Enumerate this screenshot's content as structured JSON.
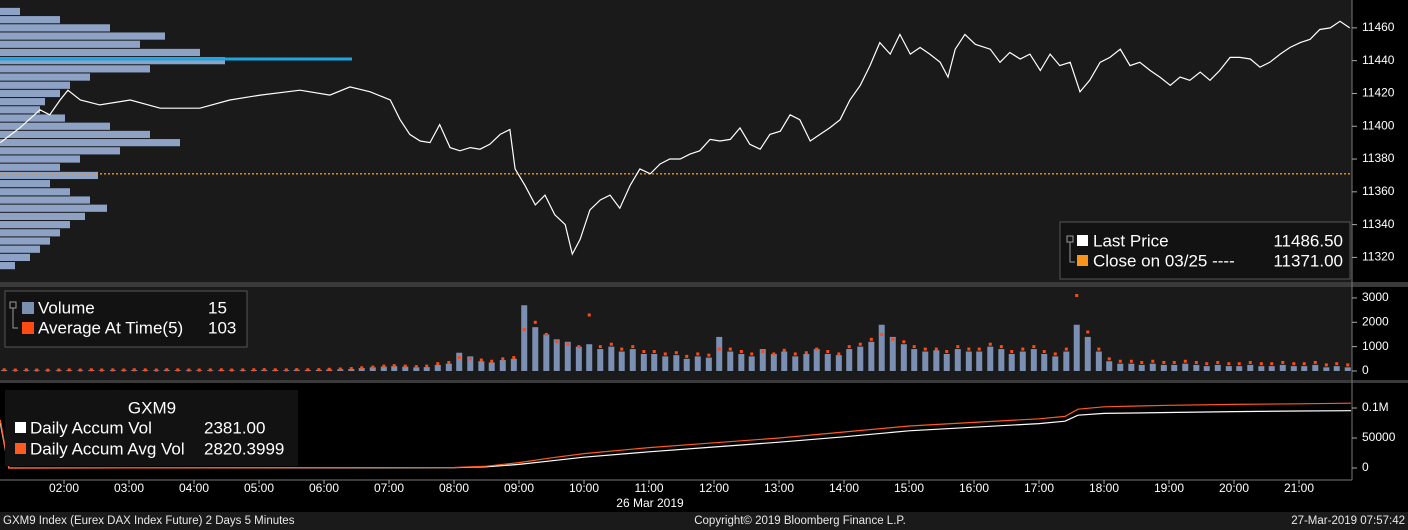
{
  "chart_data": [
    {
      "type": "line",
      "xlim": [
        1.015,
        21.815
      ],
      "ylim": [
        11305,
        11477
      ],
      "yticks": [
        11320,
        11340,
        11360,
        11380,
        11400,
        11420,
        11440,
        11460
      ],
      "series": [
        {
          "name": "Last Price",
          "color": "#ffffff",
          "legend_value": "11486.50",
          "x": [
            1.02,
            1.32,
            1.63,
            1.78,
            1.94,
            2.06,
            2.25,
            2.55,
            3.02,
            3.48,
            4.09,
            4.55,
            5.02,
            5.63,
            6.09,
            6.4,
            6.71,
            7.02,
            7.17,
            7.32,
            7.48,
            7.63,
            7.78,
            7.94,
            8.09,
            8.25,
            8.4,
            8.55,
            8.71,
            8.86,
            8.94,
            9.09,
            9.25,
            9.4,
            9.55,
            9.71,
            9.82,
            9.94,
            10.09,
            10.25,
            10.4,
            10.55,
            10.71,
            10.86,
            11.02,
            11.17,
            11.32,
            11.48,
            11.63,
            11.78,
            11.94,
            12.09,
            12.25,
            12.4,
            12.55,
            12.71,
            12.86,
            13.02,
            13.17,
            13.32,
            13.48,
            13.63,
            13.78,
            13.94,
            14.09,
            14.25,
            14.4,
            14.55,
            14.71,
            14.86,
            15.02,
            15.17,
            15.32,
            15.48,
            15.6,
            15.71,
            15.86,
            16.02,
            16.25,
            16.4,
            16.55,
            16.71,
            16.86,
            17.02,
            17.17,
            17.32,
            17.48,
            17.63,
            17.78,
            17.94,
            18.09,
            18.25,
            18.4,
            18.55,
            18.71,
            18.86,
            19.02,
            19.17,
            19.32,
            19.48,
            19.63,
            19.78,
            19.94,
            20.09,
            20.25,
            20.4,
            20.55,
            20.71,
            20.86,
            21.02,
            21.17,
            21.32,
            21.48,
            21.63,
            21.78
          ],
          "values": [
            11390,
            11399,
            11410,
            11407,
            11416,
            11422,
            11416,
            11413,
            11416,
            11411,
            11411,
            11416,
            11419,
            11422,
            11419,
            11424,
            11421,
            11416,
            11404,
            11395,
            11391,
            11390,
            11401,
            11387,
            11385,
            11387,
            11386,
            11389,
            11395,
            11398,
            11374,
            11364,
            11352,
            11358,
            11346,
            11340,
            11322,
            11331,
            11349,
            11355,
            11358,
            11350,
            11364,
            11374,
            11371,
            11377,
            11380,
            11380,
            11383,
            11385,
            11392,
            11391,
            11392,
            11399,
            11389,
            11386,
            11395,
            11397,
            11407,
            11404,
            11391,
            11395,
            11399,
            11404,
            11416,
            11425,
            11437,
            11451,
            11444,
            11456,
            11444,
            11448,
            11444,
            11439,
            11430,
            11447,
            11456,
            11450,
            11447,
            11439,
            11445,
            11441,
            11444,
            11434,
            11444,
            11437,
            11439,
            11421,
            11428,
            11439,
            11442,
            11447,
            11437,
            11439,
            11434,
            11430,
            11425,
            11430,
            11428,
            11433,
            11428,
            11434,
            11442,
            11442,
            11441,
            11436,
            11439,
            11444,
            11448,
            11451,
            11453,
            11459,
            11460,
            11464,
            11460
          ]
        }
      ],
      "close": {
        "name": "Close on 03/25 ----",
        "value": 11371,
        "legend_value": "11371.00",
        "color": "#f7941d"
      },
      "volume_profile": {
        "color": "#8ea2c6",
        "poc": 11441,
        "poc_color": "#1aa6e0",
        "levels": [
          11470,
          11465,
          11460,
          11455,
          11450,
          11445,
          11440,
          11435,
          11430,
          11425,
          11420,
          11415,
          11410,
          11405,
          11400,
          11395,
          11390,
          11385,
          11380,
          11375,
          11370,
          11365,
          11360,
          11355,
          11350,
          11345,
          11340,
          11335,
          11330,
          11325,
          11320,
          11315
        ],
        "values": [
          20,
          60,
          110,
          165,
          140,
          200,
          225,
          150,
          90,
          70,
          60,
          45,
          40,
          65,
          110,
          150,
          180,
          120,
          80,
          60,
          98,
          50,
          70,
          90,
          107,
          85,
          70,
          60,
          50,
          40,
          30,
          15
        ]
      }
    },
    {
      "type": "bar",
      "xlim": [
        1.015,
        21.815
      ],
      "ylim": [
        -370,
        3450
      ],
      "yticks": [
        0,
        1000,
        2000,
        3000
      ],
      "x": [
        1.08,
        1.25,
        1.42,
        1.58,
        1.75,
        1.92,
        2.08,
        2.25,
        2.42,
        2.58,
        2.75,
        2.92,
        3.08,
        3.25,
        3.42,
        3.58,
        3.75,
        3.92,
        4.08,
        4.25,
        4.42,
        4.58,
        4.75,
        4.92,
        5.08,
        5.25,
        5.42,
        5.58,
        5.75,
        5.92,
        6.08,
        6.25,
        6.42,
        6.58,
        6.75,
        6.92,
        7.08,
        7.25,
        7.42,
        7.58,
        7.75,
        7.92,
        8.08,
        8.25,
        8.42,
        8.58,
        8.75,
        8.92,
        9.08,
        9.25,
        9.42,
        9.58,
        9.75,
        9.92,
        10.08,
        10.25,
        10.42,
        10.58,
        10.75,
        10.92,
        11.08,
        11.25,
        11.42,
        11.58,
        11.75,
        11.92,
        12.08,
        12.25,
        12.42,
        12.58,
        12.75,
        12.92,
        13.08,
        13.25,
        13.42,
        13.58,
        13.75,
        13.92,
        14.08,
        14.25,
        14.42,
        14.58,
        14.75,
        14.92,
        15.08,
        15.25,
        15.42,
        15.58,
        15.75,
        15.92,
        16.08,
        16.25,
        16.42,
        16.58,
        16.75,
        16.92,
        17.08,
        17.25,
        17.42,
        17.58,
        17.75,
        17.92,
        18.08,
        18.25,
        18.42,
        18.58,
        18.75,
        18.92,
        19.08,
        19.25,
        19.42,
        19.58,
        19.75,
        19.92,
        20.08,
        20.25,
        20.42,
        20.58,
        20.75,
        20.92,
        21.08,
        21.25,
        21.42,
        21.58,
        21.75
      ],
      "series": [
        {
          "name": "Volume",
          "color": "#7b8fb3",
          "mark": "bar",
          "legend_value": "15",
          "values": [
            40,
            30,
            35,
            30,
            25,
            30,
            35,
            30,
            40,
            30,
            35,
            30,
            40,
            35,
            30,
            45,
            35,
            30,
            30,
            35,
            40,
            30,
            35,
            40,
            45,
            40,
            35,
            50,
            40,
            45,
            60,
            70,
            80,
            120,
            150,
            180,
            200,
            180,
            150,
            160,
            250,
            300,
            750,
            600,
            400,
            350,
            450,
            500,
            2700,
            1800,
            1500,
            1300,
            1200,
            1000,
            1100,
            900,
            1000,
            800,
            900,
            700,
            700,
            600,
            650,
            500,
            600,
            550,
            1400,
            800,
            700,
            600,
            900,
            700,
            800,
            600,
            700,
            900,
            700,
            650,
            900,
            1000,
            1200,
            1900,
            1400,
            1100,
            900,
            800,
            850,
            700,
            900,
            800,
            800,
            1000,
            900,
            700,
            800,
            900,
            700,
            600,
            800,
            1900,
            1400,
            800,
            400,
            300,
            300,
            250,
            300,
            250,
            250,
            300,
            250,
            200,
            250,
            200,
            200,
            250,
            200,
            200,
            250,
            200,
            200,
            250,
            150,
            200,
            150
          ]
        },
        {
          "name": "Average At Time(5)",
          "color": "#ff4a12",
          "mark": "dot",
          "legend_value": "103",
          "values": [
            50,
            40,
            45,
            40,
            35,
            40,
            45,
            40,
            50,
            40,
            45,
            40,
            50,
            45,
            40,
            50,
            45,
            40,
            40,
            45,
            50,
            40,
            45,
            50,
            55,
            50,
            45,
            55,
            50,
            55,
            70,
            80,
            100,
            130,
            160,
            200,
            220,
            200,
            180,
            200,
            300,
            350,
            550,
            500,
            450,
            400,
            500,
            550,
            1700,
            2000,
            1500,
            1200,
            1100,
            1000,
            2300,
            1000,
            1100,
            900,
            1000,
            800,
            800,
            700,
            750,
            600,
            700,
            650,
            900,
            900,
            800,
            700,
            800,
            700,
            850,
            700,
            750,
            900,
            800,
            700,
            1000,
            1100,
            1300,
            1500,
            1300,
            1200,
            1000,
            900,
            900,
            800,
            1000,
            900,
            900,
            1100,
            1000,
            800,
            900,
            1000,
            800,
            700,
            900,
            3100,
            1600,
            900,
            500,
            400,
            400,
            350,
            400,
            350,
            350,
            400,
            350,
            300,
            350,
            300,
            300,
            350,
            300,
            300,
            350,
            300,
            300,
            350,
            250,
            300,
            250
          ]
        }
      ]
    },
    {
      "type": "line",
      "legend_title": "GXM9",
      "xlabel": "26 Mar 2019",
      "xlim": [
        1.015,
        21.815
      ],
      "xticks": [
        {
          "value": 2,
          "label": "02:00"
        },
        {
          "value": 3,
          "label": "03:00"
        },
        {
          "value": 4,
          "label": "04:00"
        },
        {
          "value": 5,
          "label": "05:00"
        },
        {
          "value": 6,
          "label": "06:00"
        },
        {
          "value": 7,
          "label": "07:00"
        },
        {
          "value": 8,
          "label": "08:00"
        },
        {
          "value": 9,
          "label": "09:00"
        },
        {
          "value": 10,
          "label": "10:00"
        },
        {
          "value": 11,
          "label": "11:00"
        },
        {
          "value": 12,
          "label": "12:00"
        },
        {
          "value": 13,
          "label": "13:00"
        },
        {
          "value": 14,
          "label": "14:00"
        },
        {
          "value": 15,
          "label": "15:00"
        },
        {
          "value": 16,
          "label": "16:00"
        },
        {
          "value": 17,
          "label": "17:00"
        },
        {
          "value": 18,
          "label": "18:00"
        },
        {
          "value": 19,
          "label": "19:00"
        },
        {
          "value": 20,
          "label": "20:00"
        },
        {
          "value": 21,
          "label": "21:00"
        }
      ],
      "ylim": [
        -20000,
        141700
      ],
      "yticks": [
        0,
        50000,
        {
          "value": 100000,
          "label": "0.1M"
        }
      ],
      "series": [
        {
          "name": "Daily Accum Vol",
          "color": "#ffffff",
          "legend_value": "2381.00",
          "x": [
            1.02,
            1.15,
            8.0,
            8.5,
            9.0,
            9.5,
            10.0,
            11.0,
            12.0,
            13.0,
            14.0,
            15.0,
            16.0,
            17.0,
            17.4,
            17.6,
            18.0,
            19.0,
            20.0,
            21.0,
            21.8
          ],
          "values": [
            75000,
            0,
            500,
            2000,
            6000,
            12000,
            18000,
            27000,
            35000,
            43000,
            52000,
            62000,
            68000,
            74000,
            78000,
            88000,
            91000,
            92500,
            94000,
            95000,
            95500
          ]
        },
        {
          "name": "Daily Accum Avg Vol",
          "color": "#ff5a1f",
          "legend_value": "2820.3999",
          "x": [
            1.02,
            1.15,
            8.0,
            8.5,
            9.0,
            9.5,
            10.0,
            11.0,
            12.0,
            13.0,
            14.0,
            15.0,
            16.0,
            17.0,
            17.4,
            17.6,
            18.0,
            19.0,
            20.0,
            21.0,
            21.8
          ],
          "values": [
            80000,
            0,
            800,
            3000,
            9000,
            17000,
            24000,
            34000,
            42000,
            50000,
            60000,
            70000,
            76000,
            82000,
            86000,
            98000,
            102000,
            104500,
            106000,
            107000,
            108000
          ]
        }
      ]
    }
  ],
  "footer": {
    "left": "GXM9 Index (Eurex DAX Index Future) 2 Days 5 Minutes",
    "center": "Copyright© 2019 Bloomberg Finance L.P.",
    "right": "27-Mar-2019 07:57:42"
  }
}
